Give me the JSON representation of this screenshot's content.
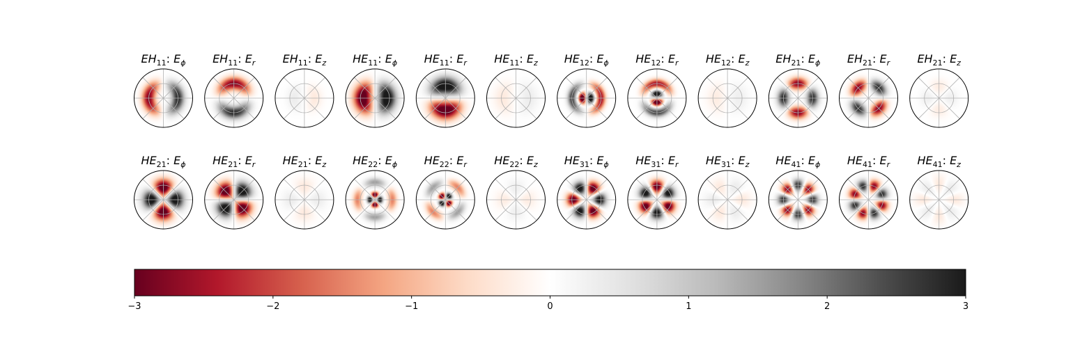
{
  "chart_data": {
    "type": "heatmap",
    "description_free": true,
    "colormap": "RdGy",
    "colorbar": {
      "min": -3,
      "max": 3,
      "ticks": [
        -3,
        -2,
        -1,
        0,
        1,
        2,
        3
      ],
      "tick_labels": [
        "−3",
        "−2",
        "−1",
        "0",
        "1",
        "2",
        "3"
      ]
    },
    "projection": "polar",
    "rows": [
      [
        {
          "mode": "EH",
          "sub": "11",
          "comp": "ϕ",
          "l": 1,
          "orient": "cos",
          "rings": [
            {
              "r": 0.5,
              "w": 0.22,
              "a": 2.8
            }
          ]
        },
        {
          "mode": "EH",
          "sub": "11",
          "comp": "r",
          "l": 1,
          "orient": "sin",
          "rings": [
            {
              "r": 0.5,
              "w": 0.22,
              "a": -2.8
            }
          ]
        },
        {
          "mode": "EH",
          "sub": "11",
          "comp": "z",
          "l": 1,
          "orient": "cos",
          "rings": [
            {
              "r": 0.35,
              "w": 0.25,
              "a": -0.35
            }
          ]
        },
        {
          "mode": "HE",
          "sub": "11",
          "comp": "ϕ",
          "l": 1,
          "orient": "cos",
          "rings": [
            {
              "r": 0.42,
              "w": 0.3,
              "a": 3.5
            }
          ]
        },
        {
          "mode": "HE",
          "sub": "11",
          "comp": "r",
          "l": 1,
          "orient": "sin",
          "rings": [
            {
              "r": 0.42,
              "w": 0.3,
              "a": 3.5
            }
          ]
        },
        {
          "mode": "HE",
          "sub": "11",
          "comp": "z",
          "l": 1,
          "orient": "cos",
          "rings": [
            {
              "r": 0.45,
              "w": 0.3,
              "a": 0.35
            }
          ]
        },
        {
          "mode": "HE",
          "sub": "12",
          "comp": "ϕ",
          "l": 1,
          "orient": "cos",
          "rings": [
            {
              "r": 0.15,
              "w": 0.12,
              "a": 3.5
            },
            {
              "r": 0.5,
              "w": 0.15,
              "a": -2.5
            }
          ]
        },
        {
          "mode": "HE",
          "sub": "12",
          "comp": "r",
          "l": 1,
          "orient": "sin",
          "rings": [
            {
              "r": 0.15,
              "w": 0.12,
              "a": 3.5
            },
            {
              "r": 0.5,
              "w": 0.15,
              "a": -2.5
            }
          ]
        },
        {
          "mode": "HE",
          "sub": "12",
          "comp": "z",
          "l": 1,
          "orient": "cos",
          "rings": [
            {
              "r": 0.4,
              "w": 0.3,
              "a": 0.3
            }
          ]
        },
        {
          "mode": "EH",
          "sub": "21",
          "comp": "ϕ",
          "l": 2,
          "orient": "cos",
          "rings": [
            {
              "r": 0.5,
              "w": 0.2,
              "a": 2.8
            }
          ]
        },
        {
          "mode": "EH",
          "sub": "21",
          "comp": "r",
          "l": 2,
          "orient": "sin",
          "rings": [
            {
              "r": 0.5,
              "w": 0.2,
              "a": 2.8
            }
          ]
        },
        {
          "mode": "EH",
          "sub": "21",
          "comp": "z",
          "l": 2,
          "orient": "cos",
          "rings": [
            {
              "r": 0.4,
              "w": 0.25,
              "a": 0.3
            }
          ]
        }
      ],
      [
        {
          "mode": "HE",
          "sub": "21",
          "comp": "ϕ",
          "l": 2,
          "orient": "cos",
          "rings": [
            {
              "r": 0.42,
              "w": 0.28,
              "a": 3.5
            }
          ]
        },
        {
          "mode": "HE",
          "sub": "21",
          "comp": "r",
          "l": 2,
          "orient": "sin",
          "rings": [
            {
              "r": 0.42,
              "w": 0.28,
              "a": 3.5
            }
          ]
        },
        {
          "mode": "HE",
          "sub": "21",
          "comp": "z",
          "l": 2,
          "orient": "cos",
          "rings": [
            {
              "r": 0.45,
              "w": 0.3,
              "a": 0.35
            }
          ]
        },
        {
          "mode": "HE",
          "sub": "22",
          "comp": "ϕ",
          "l": 2,
          "orient": "cos",
          "rings": [
            {
              "r": 0.17,
              "w": 0.1,
              "a": 3.5
            },
            {
              "r": 0.6,
              "w": 0.15,
              "a": -1.5
            }
          ]
        },
        {
          "mode": "HE",
          "sub": "22",
          "comp": "r",
          "l": 2,
          "orient": "sin",
          "rings": [
            {
              "r": 0.17,
              "w": 0.1,
              "a": 3.5
            },
            {
              "r": 0.6,
              "w": 0.15,
              "a": -1.5
            }
          ]
        },
        {
          "mode": "HE",
          "sub": "22",
          "comp": "z",
          "l": 2,
          "orient": "cos",
          "rings": [
            {
              "r": 0.4,
              "w": 0.3,
              "a": -0.3
            }
          ]
        },
        {
          "mode": "HE",
          "sub": "31",
          "comp": "ϕ",
          "l": 3,
          "orient": "cos",
          "rings": [
            {
              "r": 0.45,
              "w": 0.22,
              "a": 3.3
            }
          ]
        },
        {
          "mode": "HE",
          "sub": "31",
          "comp": "r",
          "l": 3,
          "orient": "sin",
          "rings": [
            {
              "r": 0.45,
              "w": 0.22,
              "a": 3.3
            }
          ]
        },
        {
          "mode": "HE",
          "sub": "31",
          "comp": "z",
          "l": 3,
          "orient": "cos",
          "rings": [
            {
              "r": 0.5,
              "w": 0.3,
              "a": -0.35
            }
          ]
        },
        {
          "mode": "HE",
          "sub": "41",
          "comp": "ϕ",
          "l": 4,
          "orient": "cos",
          "rings": [
            {
              "r": 0.5,
              "w": 0.2,
              "a": 2.8
            }
          ]
        },
        {
          "mode": "HE",
          "sub": "41",
          "comp": "r",
          "l": 4,
          "orient": "sin",
          "rings": [
            {
              "r": 0.5,
              "w": 0.2,
              "a": 2.8
            }
          ]
        },
        {
          "mode": "HE",
          "sub": "41",
          "comp": "z",
          "l": 4,
          "orient": "cos",
          "rings": [
            {
              "r": 0.55,
              "w": 0.3,
              "a": -0.35
            }
          ]
        }
      ]
    ]
  }
}
